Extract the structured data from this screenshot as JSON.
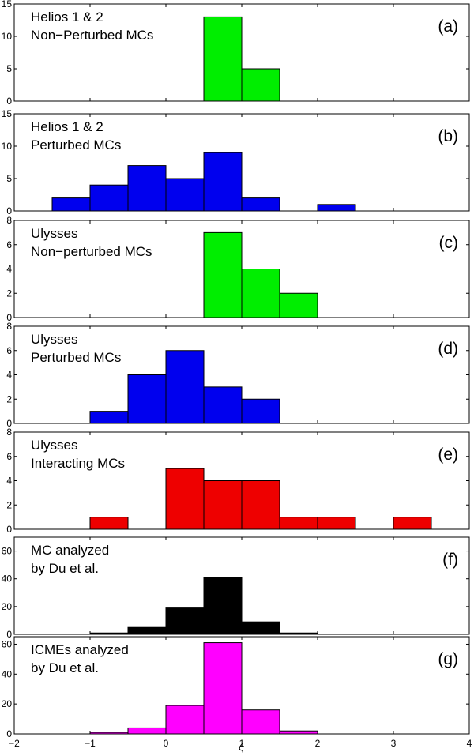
{
  "figure_title": "",
  "xlabel": "ζ",
  "xlim": [
    -2,
    4
  ],
  "x_ticks": [
    "−2",
    "−1",
    "0",
    "1",
    "2",
    "3",
    "4"
  ],
  "chart_data": [
    {
      "type": "bar",
      "panel": "(a)",
      "annotation": [
        "Helios 1 & 2",
        "Non−Perturbed MCs"
      ],
      "color": "#00ee00",
      "bin_width": 0.5,
      "bin_starts": [
        0.5,
        1.0
      ],
      "values": [
        13,
        5
      ],
      "ylim": [
        0,
        15
      ],
      "y_ticks": [
        0,
        5,
        10,
        15
      ],
      "y_tick_labels": [
        "0",
        "5",
        "10",
        "15"
      ]
    },
    {
      "type": "bar",
      "panel": "(b)",
      "annotation": [
        "Helios 1 & 2",
        "Perturbed MCs"
      ],
      "color": "#0000ee",
      "bin_width": 0.5,
      "bin_starts": [
        -1.5,
        -1.0,
        -0.5,
        0.0,
        0.5,
        1.0,
        2.0
      ],
      "values": [
        2,
        4,
        7,
        5,
        9,
        2,
        1
      ],
      "ylim": [
        0,
        15
      ],
      "y_ticks": [
        0,
        5,
        10,
        15
      ],
      "y_tick_labels": [
        "0",
        "5",
        "10",
        "15"
      ]
    },
    {
      "type": "bar",
      "panel": "(c)",
      "annotation": [
        "Ulysses",
        "Non−perturbed MCs"
      ],
      "color": "#00ee00",
      "bin_width": 0.5,
      "bin_starts": [
        0.5,
        1.0,
        1.5
      ],
      "values": [
        7,
        4,
        2
      ],
      "ylim": [
        0,
        8
      ],
      "y_ticks": [
        0,
        2,
        4,
        6,
        8
      ],
      "y_tick_labels": [
        "0",
        "2",
        "4",
        "6",
        "8"
      ]
    },
    {
      "type": "bar",
      "panel": "(d)",
      "annotation": [
        "Ulysses",
        "Perturbed MCs"
      ],
      "color": "#0000ee",
      "bin_width": 0.5,
      "bin_starts": [
        -1.0,
        -0.5,
        0.0,
        0.5,
        1.0
      ],
      "values": [
        1,
        4,
        6,
        3,
        2
      ],
      "ylim": [
        0,
        8
      ],
      "y_ticks": [
        0,
        2,
        4,
        6,
        8
      ],
      "y_tick_labels": [
        "0",
        "2",
        "4",
        "6",
        "8"
      ]
    },
    {
      "type": "bar",
      "panel": "(e)",
      "annotation": [
        "Ulysses",
        "Interacting MCs"
      ],
      "color": "#ee0000",
      "bin_width": 0.5,
      "bin_starts": [
        -1.0,
        0.0,
        0.5,
        1.0,
        1.5,
        2.0,
        3.0
      ],
      "values": [
        1,
        5,
        4,
        4,
        1,
        1,
        1
      ],
      "ylim": [
        0,
        8
      ],
      "y_ticks": [
        0,
        2,
        4,
        6,
        8
      ],
      "y_tick_labels": [
        "0",
        "2",
        "4",
        "6",
        "8"
      ]
    },
    {
      "type": "bar",
      "panel": "(f)",
      "annotation": [
        "MC analyzed",
        "by Du et al."
      ],
      "color": "#000000",
      "bin_width": 0.5,
      "bin_starts": [
        -1.0,
        -0.5,
        0.0,
        0.5,
        1.0,
        1.5
      ],
      "values": [
        1,
        5,
        19,
        41,
        9,
        1
      ],
      "ylim": [
        0,
        70
      ],
      "y_ticks": [
        0,
        20,
        40,
        60
      ],
      "y_tick_labels": [
        "0",
        "20",
        "40",
        "60"
      ]
    },
    {
      "type": "bar",
      "panel": "(g)",
      "annotation": [
        "ICMEs analyzed",
        "by Du et al."
      ],
      "color": "#ff00ff",
      "bin_width": 0.5,
      "bin_starts": [
        -1.0,
        -0.5,
        0.0,
        0.5,
        1.0,
        1.5
      ],
      "values": [
        1,
        4,
        19,
        61,
        16,
        2
      ],
      "ylim": [
        0,
        65
      ],
      "y_ticks": [
        0,
        20,
        40,
        60
      ],
      "y_tick_labels": [
        "0",
        "20",
        "40",
        "60"
      ]
    }
  ]
}
